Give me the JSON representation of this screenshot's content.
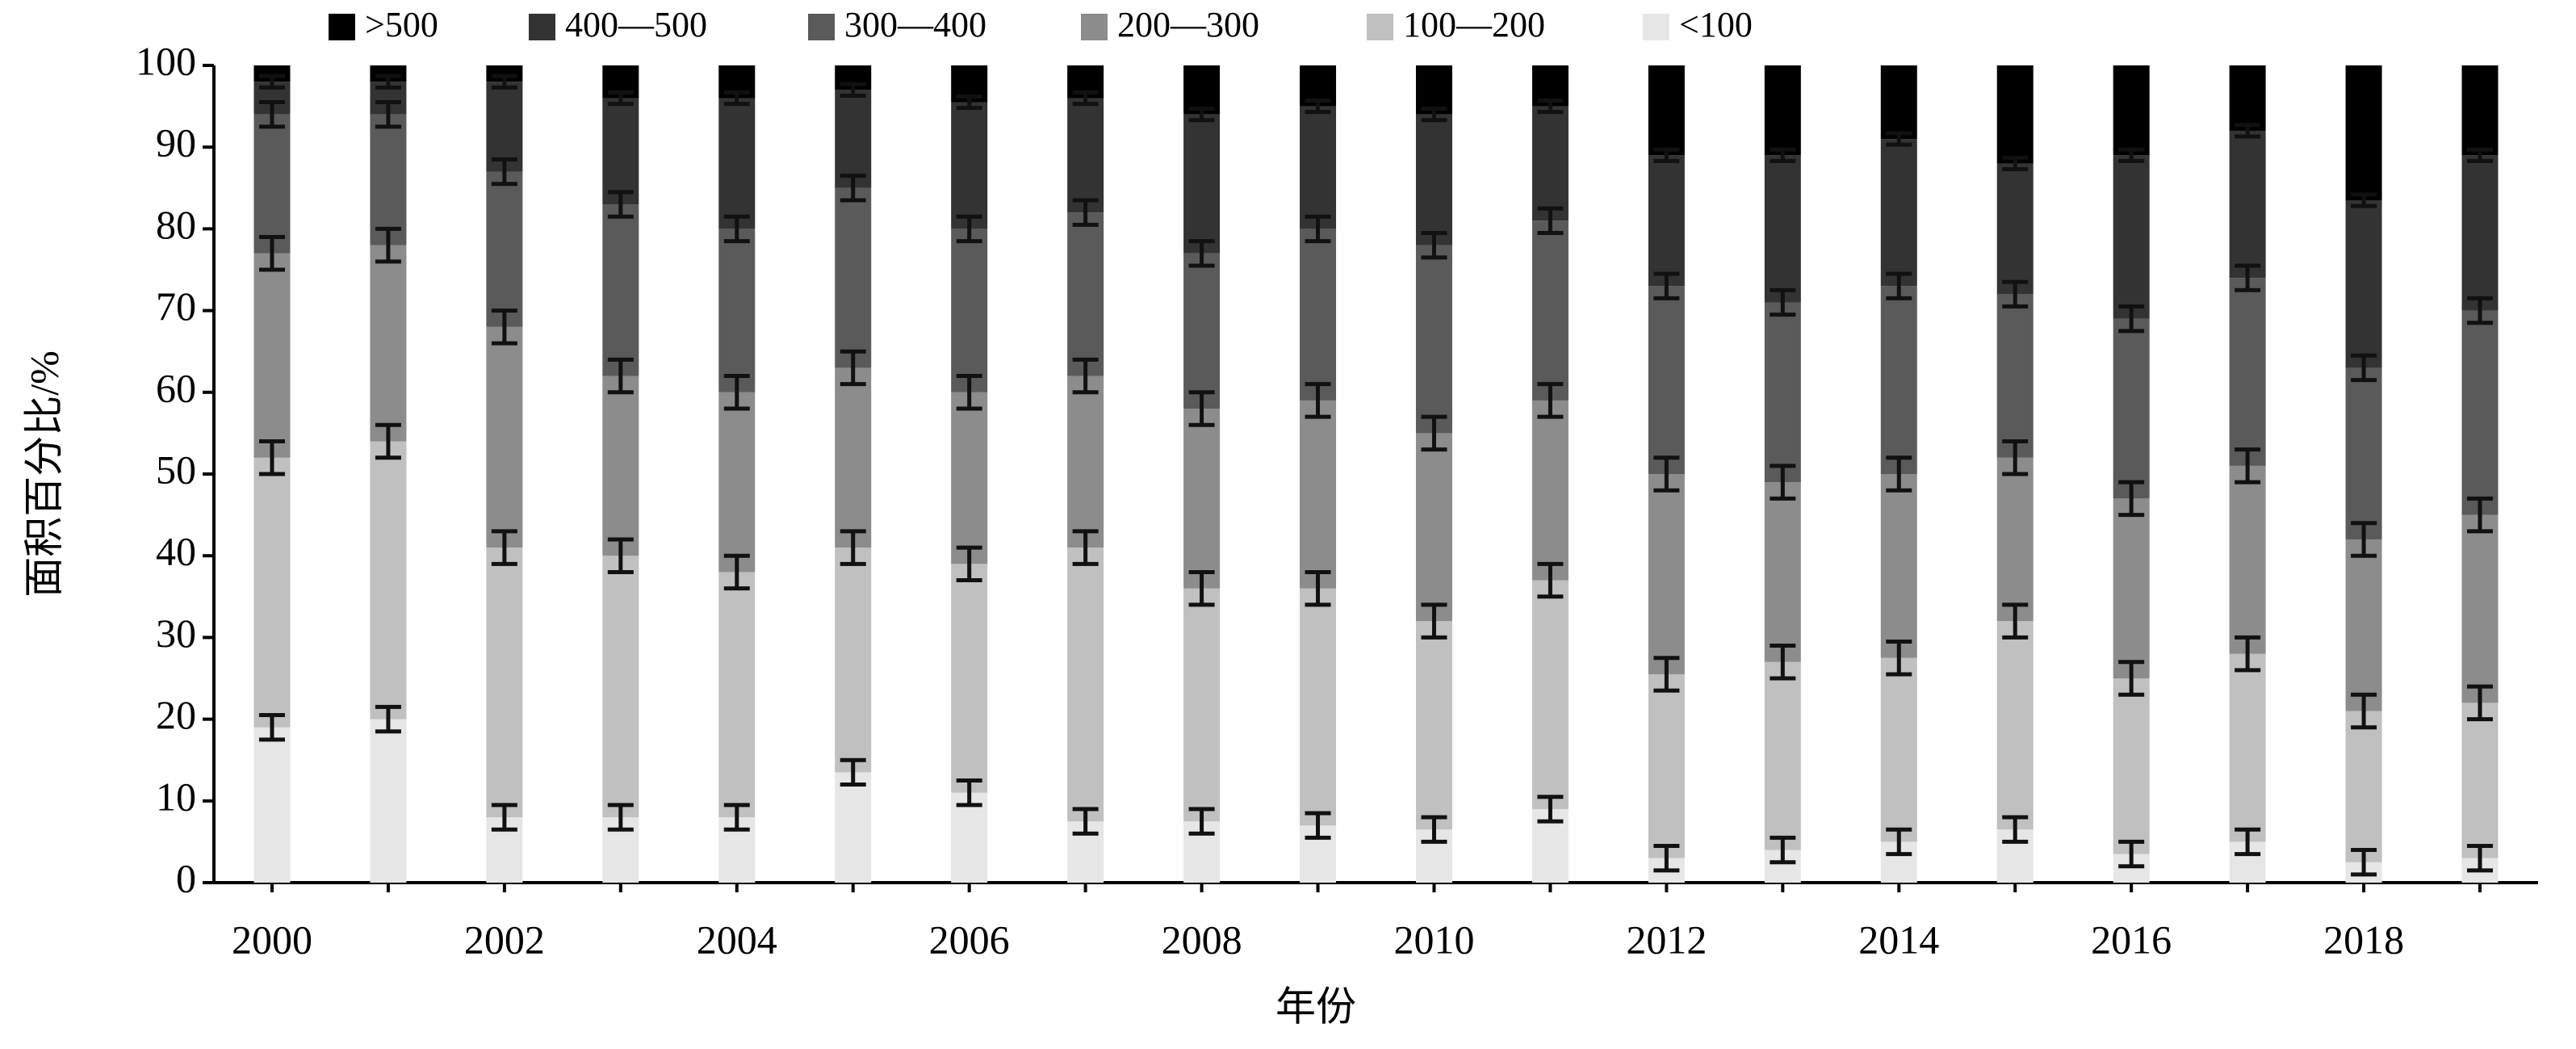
{
  "chart_data": {
    "type": "stacked_bar",
    "x_label": "年份",
    "y_label": "面积百分比/%",
    "categories": [
      "2000",
      null,
      "2002",
      null,
      "2004",
      null,
      "2006",
      null,
      "2008",
      null,
      "2010",
      null,
      "2012",
      null,
      "2014",
      null,
      "2016",
      null,
      "2018",
      null
    ],
    "ylim": [
      0,
      100
    ],
    "yticks": [
      0,
      10,
      20,
      30,
      40,
      50,
      60,
      70,
      80,
      90,
      100
    ],
    "series": [
      {
        "name": "<100",
        "color": "#e6e6e6",
        "values": [
          19,
          20,
          8,
          8,
          8,
          13.5,
          11,
          7.5,
          7.5,
          7,
          6.5,
          9,
          3,
          4,
          5,
          6.5,
          3.5,
          5,
          2.5,
          3
        ],
        "errors": [
          1.5,
          1.5,
          1.5,
          1.5,
          1.5,
          1.5,
          1.5,
          1.5,
          1.5,
          1.5,
          1.5,
          1.5,
          1.5,
          1.5,
          1.5,
          1.5,
          1.5,
          1.5,
          1.5,
          1.5
        ]
      },
      {
        "name": "100—200",
        "color": "#c0c0c0",
        "values": [
          33,
          34,
          33,
          32,
          30,
          27.5,
          28,
          33.5,
          28.5,
          29,
          25.5,
          28,
          22.5,
          23,
          22.5,
          25.5,
          21.5,
          23,
          18.5,
          19
        ],
        "errors": [
          2,
          2,
          2,
          2,
          2,
          2,
          2,
          2,
          2,
          2,
          2,
          2,
          2,
          2,
          2,
          2,
          2,
          2,
          2,
          2
        ]
      },
      {
        "name": "200—300",
        "color": "#8c8c8c",
        "values": [
          25,
          24,
          27,
          22,
          22,
          22,
          21,
          21,
          22,
          23,
          23,
          22,
          24.5,
          22,
          22.5,
          20,
          22,
          23,
          21,
          23
        ],
        "errors": [
          2,
          2,
          2,
          2,
          2,
          2,
          2,
          2,
          2,
          2,
          2,
          2,
          2,
          2,
          2,
          2,
          2,
          2,
          2,
          2
        ]
      },
      {
        "name": "300—400",
        "color": "#5a5a5a",
        "values": [
          17,
          16,
          19,
          21,
          20,
          22,
          20,
          20,
          19,
          21,
          23,
          22,
          23,
          22,
          23,
          20,
          22,
          23,
          21,
          25
        ],
        "errors": [
          1.5,
          1.5,
          1.5,
          1.5,
          1.5,
          1.5,
          1.5,
          1.5,
          1.5,
          1.5,
          1.5,
          1.5,
          1.5,
          1.5,
          1.5,
          1.5,
          1.5,
          1.5,
          1.5,
          1.5
        ]
      },
      {
        "name": "400—500",
        "color": "#333333",
        "values": [
          4,
          4,
          11,
          13,
          16,
          12,
          15.5,
          14,
          17,
          15,
          16,
          14,
          16,
          18,
          18,
          16,
          20,
          18,
          20.5,
          19
        ],
        "errors": [
          0.7,
          0.7,
          0.7,
          0.7,
          0.7,
          0.7,
          0.7,
          0.7,
          0.7,
          0.7,
          0.7,
          0.7,
          0.7,
          0.7,
          0.7,
          0.7,
          0.7,
          0.7,
          0.7,
          0.7
        ]
      },
      {
        "name": ">500",
        "color": "#000000",
        "values": [
          2,
          2,
          2,
          4,
          4,
          3,
          4.5,
          4,
          6,
          5,
          6,
          5,
          11,
          11,
          9,
          12,
          11,
          8,
          16.5,
          11
        ]
      }
    ]
  }
}
